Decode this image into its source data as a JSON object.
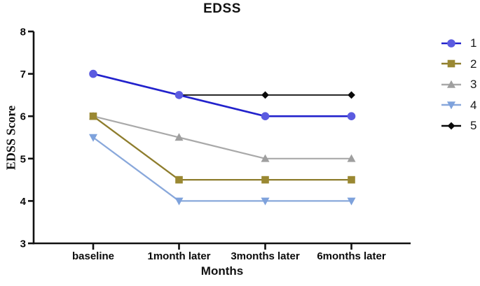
{
  "chart_data": {
    "type": "line",
    "title": "EDSS",
    "xlabel": "Months",
    "ylabel": "EDSS Score",
    "categories": [
      "baseline",
      "1month later",
      "3months later",
      "6months later"
    ],
    "yticks": [
      8,
      7,
      6,
      5,
      4,
      3
    ],
    "ylim": [
      3,
      8
    ],
    "grid": false,
    "legend_position": "right",
    "series": [
      {
        "name": "1",
        "marker": "circle",
        "line_color": "#2222cc",
        "marker_color": "#5b5be0",
        "values": [
          7,
          6.5,
          6,
          6
        ]
      },
      {
        "name": "2",
        "marker": "square",
        "line_color": "#8e7d2d",
        "marker_color": "#9a8832",
        "values": [
          6,
          4.5,
          4.5,
          4.5
        ]
      },
      {
        "name": "3",
        "marker": "triangle-up",
        "line_color": "#a9a9a9",
        "marker_color": "#9f9f9f",
        "values": [
          6,
          5.5,
          5,
          5
        ]
      },
      {
        "name": "4",
        "marker": "triangle-down",
        "line_color": "#89a8db",
        "marker_color": "#7ea2dc",
        "values": [
          5.5,
          4,
          4,
          4
        ]
      },
      {
        "name": "5",
        "marker": "diamond",
        "line_color": "#0a0a0a",
        "marker_color": "#0a0a0a",
        "values": [
          null,
          6.5,
          6.5,
          6.5
        ]
      }
    ],
    "axis_color": "#111111"
  }
}
